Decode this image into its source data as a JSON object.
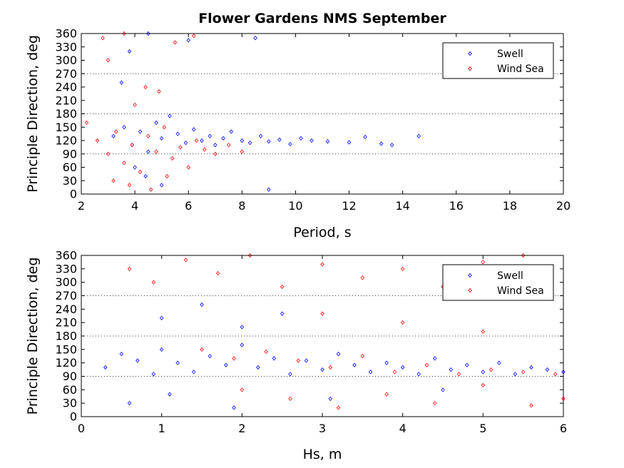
{
  "chart_data": [
    {
      "type": "scatter",
      "title": "Flower Gardens NMS September",
      "xlabel": "Period, s",
      "ylabel": "Principle Direction, deg",
      "xlim": [
        2,
        20
      ],
      "ylim": [
        0,
        360
      ],
      "xticks": [
        "2",
        "4",
        "6",
        "8",
        "10",
        "12",
        "14",
        "16",
        "18",
        "20"
      ],
      "yticks": [
        "0",
        "30",
        "60",
        "90",
        "120",
        "150",
        "180",
        "210",
        "240",
        "270",
        "300",
        "330",
        "360"
      ],
      "reference_lines_y": [
        90,
        180,
        270
      ],
      "legend": {
        "position": "top-right"
      },
      "series": [
        {
          "name": "Swell",
          "color": "#0000ff",
          "marker": "diamond",
          "points": [
            [
              3.2,
              130
            ],
            [
              3.6,
              150
            ],
            [
              3.9,
              110
            ],
            [
              4.2,
              140
            ],
            [
              4.5,
              95
            ],
            [
              4.8,
              160
            ],
            [
              5.0,
              125
            ],
            [
              5.3,
              175
            ],
            [
              5.6,
              135
            ],
            [
              5.9,
              115
            ],
            [
              6.2,
              145
            ],
            [
              6.5,
              120
            ],
            [
              6.8,
              130
            ],
            [
              7.0,
              110
            ],
            [
              7.3,
              125
            ],
            [
              7.6,
              140
            ],
            [
              8.0,
              120
            ],
            [
              8.3,
              115
            ],
            [
              8.7,
              130
            ],
            [
              9.0,
              118
            ],
            [
              9.4,
              122
            ],
            [
              9.8,
              112
            ],
            [
              10.2,
              125
            ],
            [
              10.6,
              120
            ],
            [
              11.2,
              118
            ],
            [
              12.0,
              116
            ],
            [
              12.6,
              128
            ],
            [
              13.2,
              113
            ],
            [
              13.6,
              110
            ],
            [
              14.6,
              130
            ],
            [
              4.0,
              60
            ],
            [
              4.4,
              40
            ],
            [
              5.0,
              20
            ],
            [
              3.5,
              250
            ],
            [
              3.8,
              320
            ],
            [
              4.5,
              360
            ],
            [
              6.0,
              345
            ],
            [
              8.5,
              350
            ],
            [
              9.0,
              10
            ]
          ]
        },
        {
          "name": "Wind Sea",
          "color": "#ff0000",
          "marker": "diamond",
          "points": [
            [
              2.2,
              160
            ],
            [
              2.6,
              120
            ],
            [
              3.0,
              90
            ],
            [
              3.3,
              140
            ],
            [
              3.6,
              70
            ],
            [
              3.9,
              110
            ],
            [
              4.2,
              50
            ],
            [
              4.5,
              130
            ],
            [
              4.8,
              95
            ],
            [
              5.1,
              150
            ],
            [
              5.4,
              80
            ],
            [
              5.7,
              105
            ],
            [
              6.0,
              60
            ],
            [
              6.3,
              120
            ],
            [
              6.6,
              100
            ],
            [
              7.0,
              90
            ],
            [
              7.5,
              110
            ],
            [
              8.0,
              95
            ],
            [
              3.2,
              30
            ],
            [
              3.8,
              20
            ],
            [
              4.6,
              10
            ],
            [
              5.2,
              40
            ],
            [
              4.0,
              200
            ],
            [
              4.4,
              240
            ],
            [
              3.0,
              300
            ],
            [
              2.8,
              350
            ],
            [
              3.6,
              360
            ],
            [
              5.5,
              340
            ],
            [
              6.2,
              355
            ],
            [
              4.9,
              230
            ]
          ]
        }
      ]
    },
    {
      "type": "scatter",
      "xlabel": "Hs, m",
      "ylabel": "Principle Direction, deg",
      "xlim": [
        0,
        6
      ],
      "ylim": [
        0,
        360
      ],
      "xticks": [
        "0",
        "1",
        "2",
        "3",
        "4",
        "5",
        "6"
      ],
      "yticks": [
        "0",
        "30",
        "60",
        "90",
        "120",
        "150",
        "180",
        "210",
        "240",
        "270",
        "300",
        "330",
        "360"
      ],
      "reference_lines_y": [
        90,
        180,
        270
      ],
      "legend": {
        "position": "top-right"
      },
      "series": [
        {
          "name": "Swell",
          "color": "#0000ff",
          "marker": "diamond",
          "points": [
            [
              0.3,
              110
            ],
            [
              0.5,
              140
            ],
            [
              0.7,
              125
            ],
            [
              0.9,
              95
            ],
            [
              1.0,
              150
            ],
            [
              1.2,
              120
            ],
            [
              1.4,
              100
            ],
            [
              1.6,
              135
            ],
            [
              1.8,
              115
            ],
            [
              2.0,
              160
            ],
            [
              2.2,
              110
            ],
            [
              2.4,
              130
            ],
            [
              2.6,
              95
            ],
            [
              2.8,
              125
            ],
            [
              3.0,
              105
            ],
            [
              3.2,
              140
            ],
            [
              3.4,
              115
            ],
            [
              3.6,
              100
            ],
            [
              3.8,
              120
            ],
            [
              4.0,
              110
            ],
            [
              4.2,
              95
            ],
            [
              4.4,
              130
            ],
            [
              4.6,
              105
            ],
            [
              4.8,
              115
            ],
            [
              5.0,
              100
            ],
            [
              5.2,
              120
            ],
            [
              5.4,
              95
            ],
            [
              5.6,
              110
            ],
            [
              5.8,
              105
            ],
            [
              6.0,
              100
            ],
            [
              1.0,
              220
            ],
            [
              1.5,
              250
            ],
            [
              2.0,
              200
            ],
            [
              2.5,
              230
            ],
            [
              0.6,
              30
            ],
            [
              1.1,
              50
            ],
            [
              1.9,
              20
            ],
            [
              3.1,
              40
            ],
            [
              4.5,
              60
            ]
          ]
        },
        {
          "name": "Wind Sea",
          "color": "#ff0000",
          "marker": "diamond",
          "points": [
            [
              0.6,
              330
            ],
            [
              0.9,
              300
            ],
            [
              1.3,
              350
            ],
            [
              1.7,
              320
            ],
            [
              2.1,
              360
            ],
            [
              2.5,
              290
            ],
            [
              3.0,
              340
            ],
            [
              3.5,
              310
            ],
            [
              4.0,
              330
            ],
            [
              4.5,
              290
            ],
            [
              5.0,
              345
            ],
            [
              5.5,
              360
            ],
            [
              1.5,
              150
            ],
            [
              1.9,
              130
            ],
            [
              2.3,
              145
            ],
            [
              2.7,
              125
            ],
            [
              3.1,
              110
            ],
            [
              3.5,
              135
            ],
            [
              3.9,
              100
            ],
            [
              4.3,
              115
            ],
            [
              4.7,
              95
            ],
            [
              5.1,
              105
            ],
            [
              5.5,
              100
            ],
            [
              5.9,
              95
            ],
            [
              2.0,
              60
            ],
            [
              2.6,
              40
            ],
            [
              3.2,
              20
            ],
            [
              3.8,
              50
            ],
            [
              4.4,
              30
            ],
            [
              5.0,
              70
            ],
            [
              5.6,
              25
            ],
            [
              6.0,
              40
            ],
            [
              3.0,
              230
            ],
            [
              4.0,
              210
            ],
            [
              5.0,
              190
            ]
          ]
        }
      ]
    }
  ]
}
